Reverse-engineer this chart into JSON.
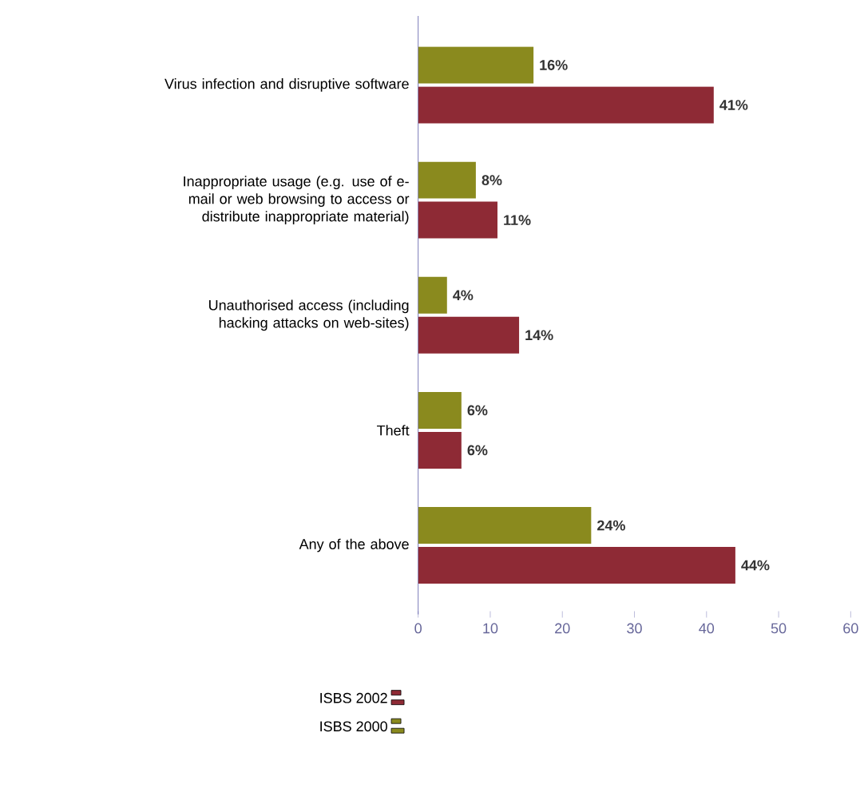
{
  "chart_data": {
    "type": "bar",
    "orientation": "horizontal",
    "categories": [
      "Virus infection and disruptive software",
      "Inappropriate usage (e.g. use of e-mail or web browsing to access or distribute inappropriate material)",
      "Unauthorised access (including hacking attacks on web-sites)",
      "Theft",
      "Any of the above"
    ],
    "series": [
      {
        "name": "ISBS 2002",
        "color": "#8e2a35",
        "values": [
          41,
          11,
          14,
          6,
          44
        ],
        "value_labels": [
          "41%",
          "11%",
          "14%",
          "6%",
          "44%"
        ]
      },
      {
        "name": "ISBS 2000",
        "color": "#8a8a1e",
        "values": [
          16,
          8,
          4,
          6,
          24
        ],
        "value_labels": [
          "16%",
          "8%",
          "4%",
          "6%",
          "24%"
        ]
      }
    ],
    "xlim": [
      0,
      60
    ],
    "xticks": [
      0,
      10,
      20,
      30,
      40,
      50,
      60
    ],
    "grid": false,
    "legend": "bottom"
  }
}
